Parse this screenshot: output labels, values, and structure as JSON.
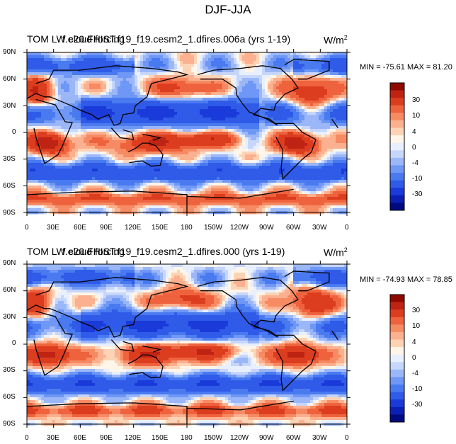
{
  "figure": {
    "title": "DJF-JJA",
    "colors": {
      "levels": [
        "#000a80",
        "#0b1fb5",
        "#1a3ad9",
        "#2f5be8",
        "#4a7af0",
        "#6f97f5",
        "#9bb7f8",
        "#c7d6fb",
        "#e8efff",
        "#fff5e8",
        "#fdd3b5",
        "#fbb08f",
        "#f68b63",
        "#ee633d",
        "#dc3d1e",
        "#bf2313",
        "#8e0a00"
      ]
    },
    "panels": [
      {
        "title_left": "TOM LW cloud forcing",
        "title_case": "f.e20.FHIST.f19_f19.cesm2_1.dfires.006a (yrs 1-19)",
        "units_base": "W/m",
        "units_exp": "2",
        "stats": "MIN = -75.61 MAX =  81.20",
        "colorbar_labels": [
          "30",
          "10",
          "4",
          "0",
          "-4",
          "-10",
          "-30"
        ],
        "lat_ticks": [
          "90N",
          "60N",
          "30N",
          "0",
          "30S",
          "60S",
          "90S"
        ],
        "lon_ticks": [
          "0",
          "30E",
          "60E",
          "90E",
          "120E",
          "150E",
          "180",
          "150W",
          "120W",
          "90W",
          "60W",
          "30W",
          "0"
        ],
        "field_seed": 1
      },
      {
        "title_left": "TOM LW cloud forcing",
        "title_case": "f.e20.FHIST.f19_f19.cesm2_1.dfires.000 (yrs 1-19)",
        "units_base": "W/m",
        "units_exp": "2",
        "stats": "MIN = -74.93 MAX =  78.85",
        "colorbar_labels": [
          "30",
          "10",
          "4",
          "0",
          "-4",
          "-10",
          "-30"
        ],
        "lat_ticks": [
          "90N",
          "60N",
          "30N",
          "0",
          "30S",
          "60S",
          "90S"
        ],
        "lon_ticks": [
          "0",
          "30E",
          "60E",
          "90E",
          "120E",
          "150E",
          "180",
          "150W",
          "120W",
          "90W",
          "60W",
          "30W",
          "0"
        ],
        "field_seed": 2
      }
    ]
  }
}
